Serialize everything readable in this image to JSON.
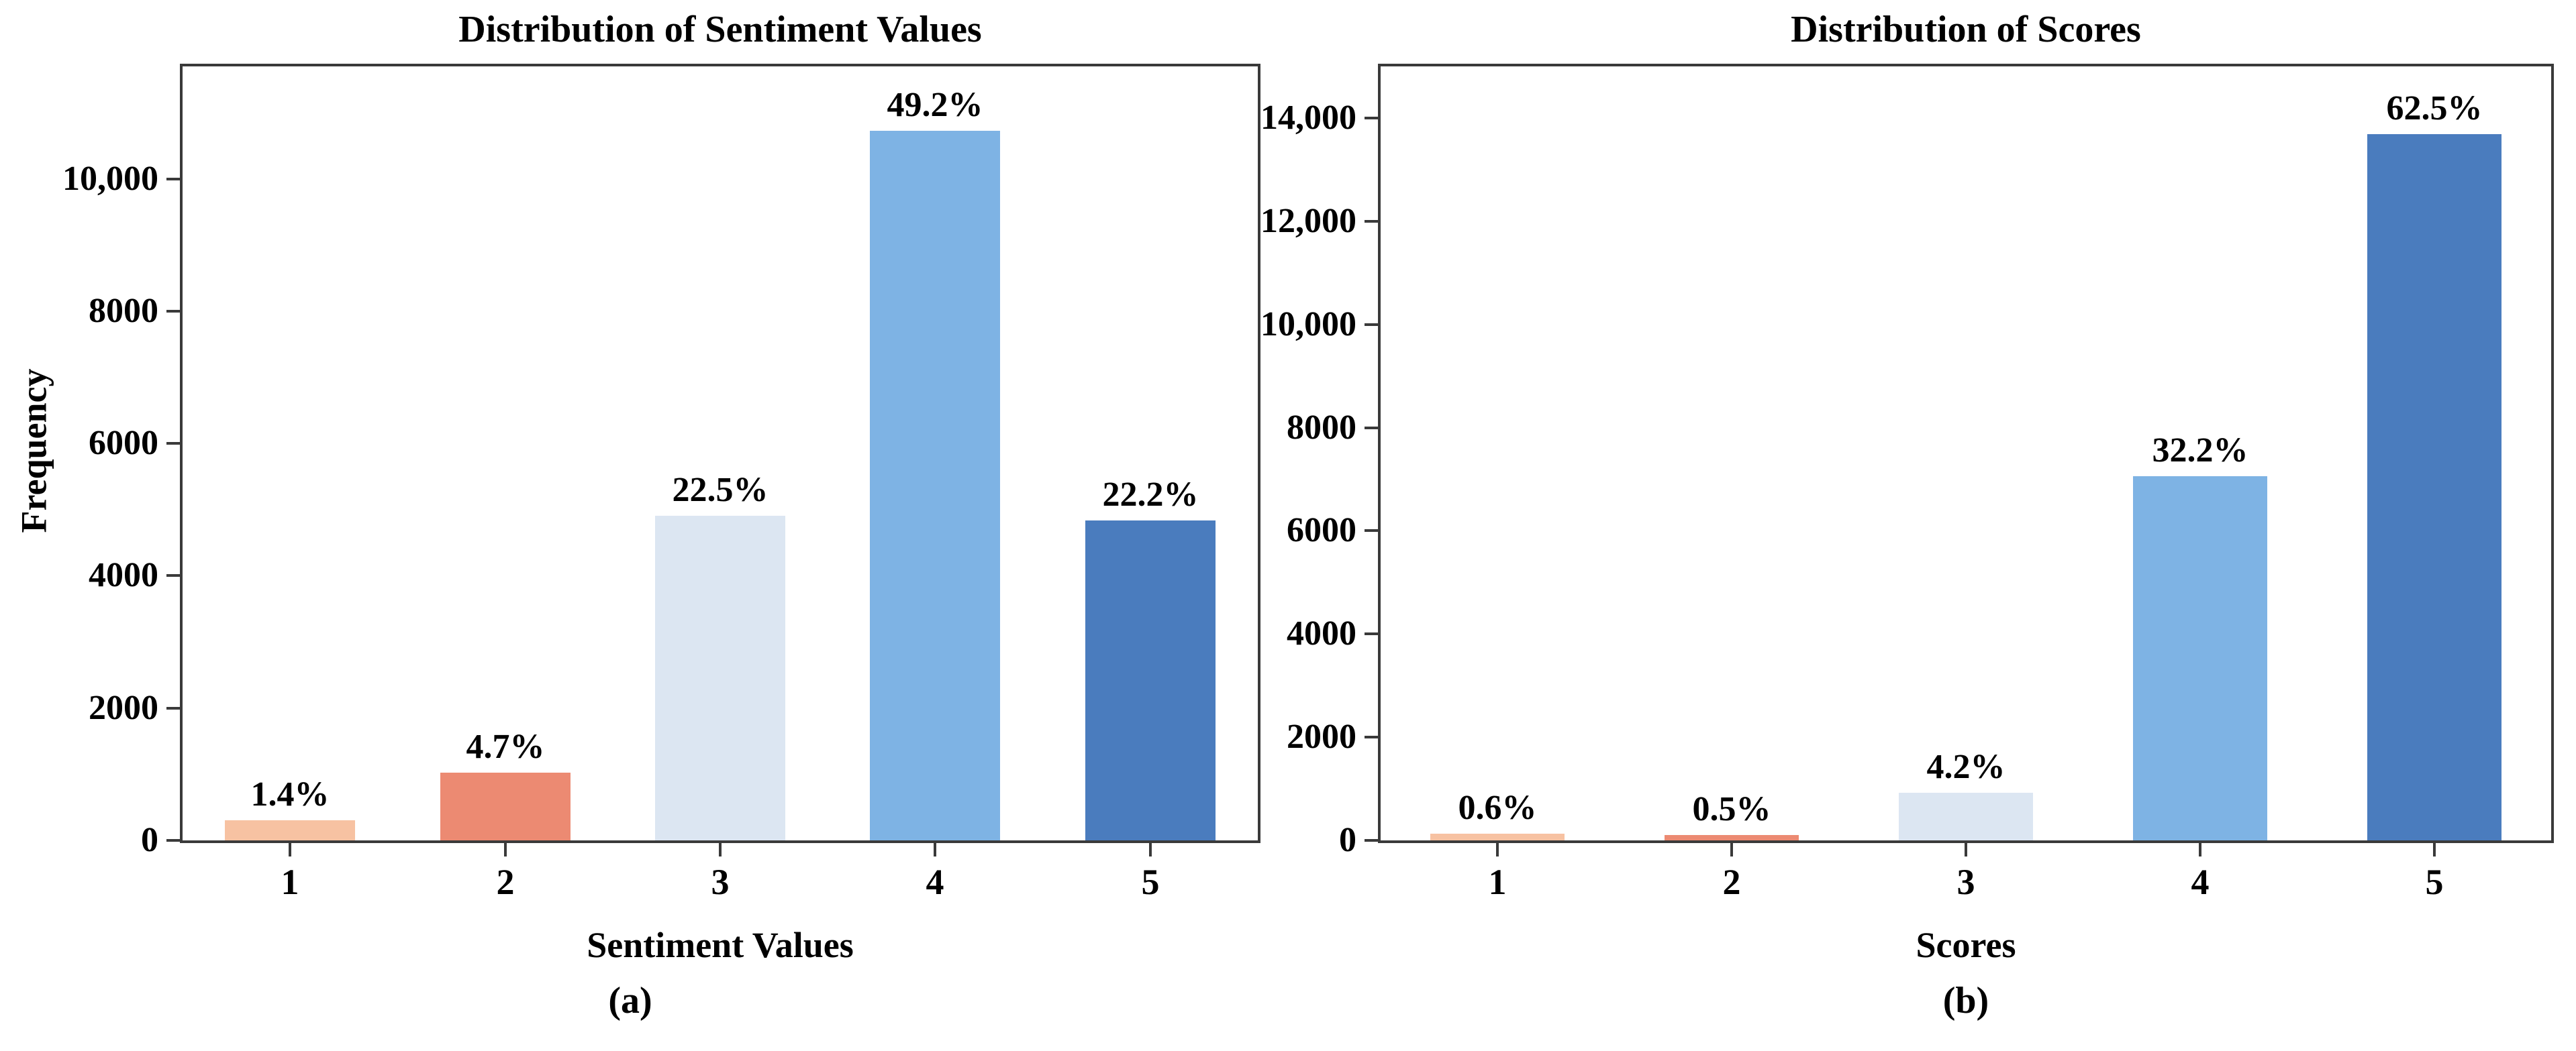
{
  "figure": {
    "background_color": "#ffffff",
    "axis_color": "#3a3a3a",
    "text_color": "#000000",
    "palette": [
      "#F7C2A2",
      "#EC8A72",
      "#DCE6F2",
      "#7EB3E4",
      "#4A7CBE"
    ]
  },
  "chart_data": [
    {
      "type": "bar",
      "title": "Distribution of Sentiment Values",
      "xlabel": "Sentiment Values",
      "ylabel": "Frequency",
      "caption": "(a)",
      "categories": [
        "1",
        "2",
        "3",
        "4",
        "5"
      ],
      "values": [
        305,
        1025,
        4905,
        10725,
        4840
      ],
      "percent_labels": [
        "1.4%",
        "4.7%",
        "22.5%",
        "49.2%",
        "22.2%"
      ],
      "bar_colors": [
        "#F7C2A2",
        "#EC8A72",
        "#DCE6F2",
        "#7EB3E4",
        "#4A7CBE"
      ],
      "ylim": [
        0,
        11700
      ],
      "yticks": [
        0,
        2000,
        4000,
        6000,
        8000,
        10000
      ],
      "ytick_labels": [
        "0",
        "2000",
        "4000",
        "6000",
        "8000",
        "10,000"
      ],
      "grid": false,
      "legend": null
    },
    {
      "type": "bar",
      "title": "Distribution of Scores",
      "xlabel": "Scores",
      "ylabel": "",
      "caption": "(b)",
      "categories": [
        "1",
        "2",
        "3",
        "4",
        "5"
      ],
      "values": [
        131,
        110,
        920,
        7052,
        13688
      ],
      "percent_labels": [
        "0.6%",
        "0.5%",
        "4.2%",
        "32.2%",
        "62.5%"
      ],
      "bar_colors": [
        "#F7C2A2",
        "#EC8A72",
        "#DCE6F2",
        "#7EB3E4",
        "#4A7CBE"
      ],
      "ylim": [
        0,
        15000
      ],
      "yticks": [
        0,
        2000,
        4000,
        6000,
        8000,
        10000,
        12000,
        14000
      ],
      "ytick_labels": [
        "0",
        "2000",
        "4000",
        "6000",
        "8000",
        "10,000",
        "12,000",
        "14,000"
      ],
      "grid": false,
      "legend": null
    }
  ]
}
